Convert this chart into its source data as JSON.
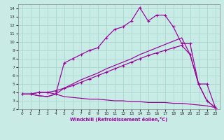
{
  "xlabel": "Windchill (Refroidissement éolien,°C)",
  "bg_color": "#c8ebe6",
  "grid_color": "#a8d8d0",
  "line_color": "#990099",
  "xlim": [
    -0.5,
    23.5
  ],
  "ylim": [
    2,
    14.5
  ],
  "xticks": [
    0,
    1,
    2,
    3,
    4,
    5,
    6,
    7,
    8,
    9,
    10,
    11,
    12,
    13,
    14,
    15,
    16,
    17,
    18,
    19,
    20,
    21,
    22,
    23
  ],
  "yticks": [
    2,
    3,
    4,
    5,
    6,
    7,
    8,
    9,
    10,
    11,
    12,
    13,
    14
  ],
  "line1_x": [
    0,
    1,
    2,
    3,
    4,
    5,
    6,
    7,
    8,
    9,
    10,
    11,
    12,
    13,
    14,
    15,
    16,
    17,
    18,
    19,
    20,
    21,
    22,
    23
  ],
  "line1_y": [
    3.8,
    3.8,
    4.0,
    4.0,
    3.8,
    7.5,
    8.0,
    8.5,
    9.0,
    9.3,
    10.5,
    11.5,
    11.8,
    12.5,
    14.1,
    12.5,
    13.2,
    13.2,
    11.8,
    9.8,
    9.8,
    5.0,
    5.0,
    2.2
  ],
  "line2_x": [
    0,
    1,
    2,
    3,
    4,
    5,
    6,
    7,
    8,
    9,
    10,
    11,
    12,
    13,
    14,
    15,
    16,
    17,
    18,
    19,
    20,
    21,
    22,
    23
  ],
  "line2_y": [
    3.8,
    3.8,
    4.0,
    4.0,
    4.2,
    4.5,
    4.8,
    5.2,
    5.6,
    6.0,
    6.4,
    6.8,
    7.2,
    7.6,
    8.0,
    8.4,
    8.7,
    9.0,
    9.3,
    9.6,
    8.5,
    5.0,
    3.0,
    2.2
  ],
  "line3_x": [
    0,
    1,
    2,
    3,
    4,
    5,
    6,
    7,
    8,
    9,
    10,
    11,
    12,
    13,
    14,
    15,
    16,
    17,
    18,
    19,
    20,
    21,
    22,
    23
  ],
  "line3_y": [
    3.8,
    3.8,
    3.6,
    3.5,
    3.8,
    3.5,
    3.4,
    3.3,
    3.2,
    3.2,
    3.1,
    3.0,
    3.0,
    2.9,
    2.9,
    2.8,
    2.8,
    2.8,
    2.7,
    2.7,
    2.6,
    2.5,
    2.4,
    2.2
  ],
  "line4_x": [
    0,
    1,
    2,
    3,
    4,
    5,
    6,
    7,
    8,
    9,
    10,
    11,
    12,
    13,
    14,
    15,
    16,
    17,
    18,
    19,
    20,
    21,
    22,
    23
  ],
  "line4_y": [
    3.8,
    3.8,
    3.6,
    3.5,
    3.8,
    4.5,
    5.0,
    5.5,
    5.9,
    6.3,
    6.8,
    7.2,
    7.6,
    8.0,
    8.5,
    8.9,
    9.3,
    9.7,
    10.1,
    10.5,
    8.5,
    5.0,
    3.0,
    2.2
  ]
}
